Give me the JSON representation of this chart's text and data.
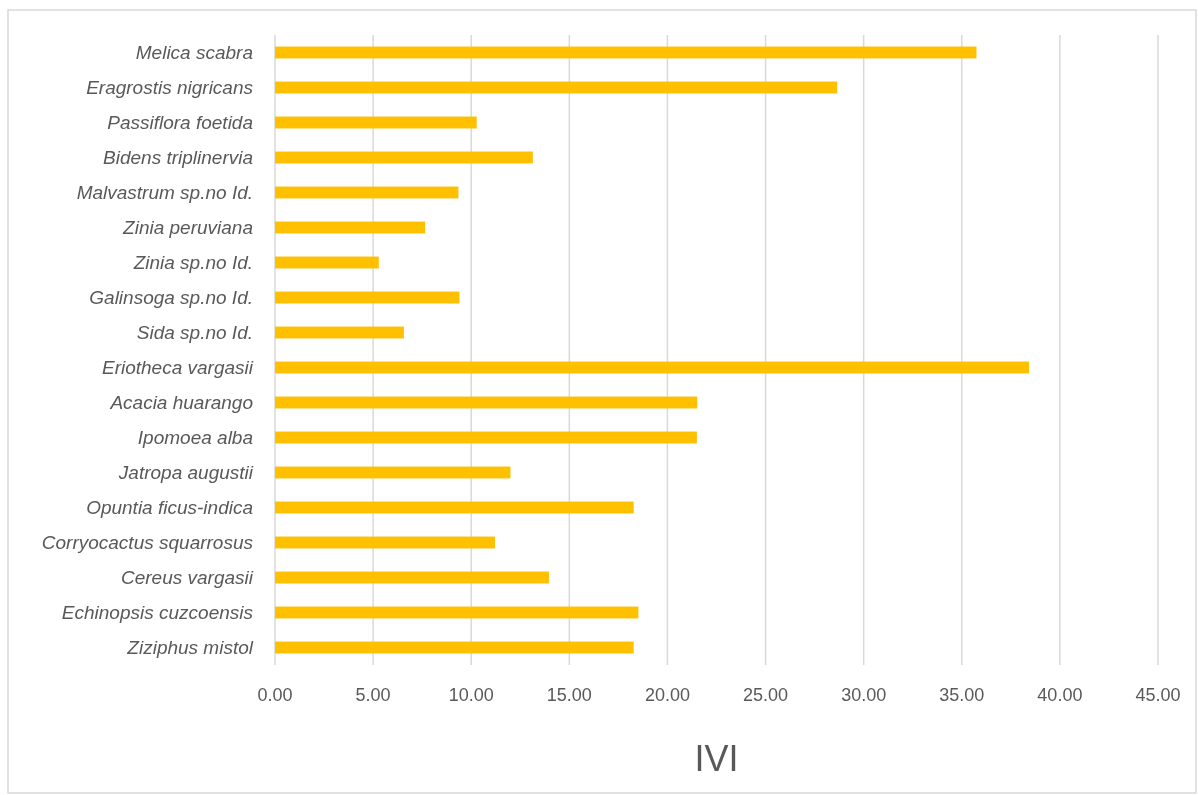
{
  "chart_data": {
    "type": "bar",
    "orientation": "horizontal",
    "xlabel": "IVI",
    "categories": [
      "Melica scabra",
      "Eragrostis nigricans",
      "Passiflora foetida",
      "Bidens triplinervia",
      "Malvastrum sp.no Id.",
      "Zinia peruviana",
      "Zinia sp.no Id.",
      "Galinsoga sp.no Id.",
      "Sida sp.no Id.",
      "Eriotheca vargasii",
      "Acacia huarango",
      "Ipomoea alba",
      "Jatropa augustii",
      "Opuntia ficus-indica",
      "Corryocactus squarrosus",
      "Cereus vargasii",
      "Echinopsis cuzcoensis",
      "Ziziphus mistol"
    ],
    "values": [
      35.75,
      28.65,
      10.28,
      13.14,
      9.35,
      7.65,
      5.29,
      9.4,
      6.57,
      38.43,
      21.52,
      21.5,
      12.0,
      18.28,
      11.21,
      13.96,
      18.52,
      18.28
    ],
    "color": "#ffc000",
    "xlim": [
      0,
      45
    ],
    "xticks": [
      {
        "value": 0,
        "label": "0.00"
      },
      {
        "value": 5,
        "label": "5.00"
      },
      {
        "value": 10,
        "label": "10.00"
      },
      {
        "value": 15,
        "label": "15.00"
      },
      {
        "value": 20,
        "label": "20.00"
      },
      {
        "value": 25,
        "label": "25.00"
      },
      {
        "value": 30,
        "label": "30.00"
      },
      {
        "value": 35,
        "label": "35.00"
      },
      {
        "value": 40,
        "label": "40.00"
      },
      {
        "value": 45,
        "label": "45.00"
      }
    ],
    "grid": "x"
  }
}
